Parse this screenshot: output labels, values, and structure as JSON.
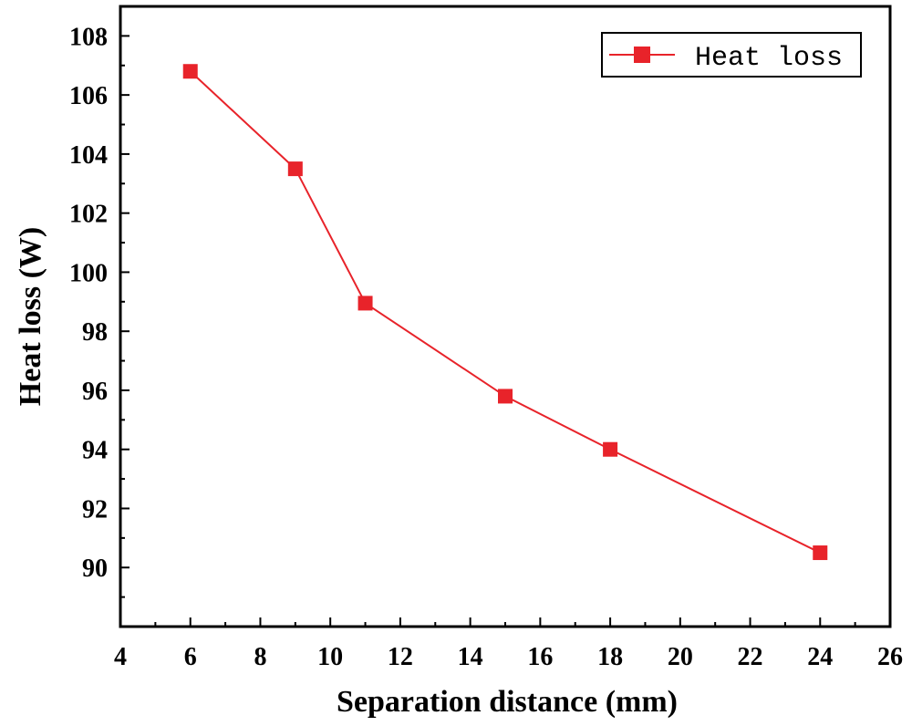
{
  "chart_data": {
    "type": "line",
    "title": "",
    "xlabel": "Separation distance (mm)",
    "ylabel": "Heat loss (W)",
    "xlim": [
      4,
      26
    ],
    "ylim": [
      88,
      109
    ],
    "xticks": [
      4,
      6,
      8,
      10,
      12,
      14,
      16,
      18,
      20,
      22,
      24,
      26
    ],
    "yticks": [
      90,
      92,
      94,
      96,
      98,
      100,
      102,
      104,
      106,
      108
    ],
    "grid": false,
    "legend_position": "top-right",
    "series": [
      {
        "name": "Heat loss",
        "color": "#e8232a",
        "marker": "square",
        "x": [
          6,
          9,
          11,
          15,
          18,
          24
        ],
        "y": [
          106.8,
          103.5,
          98.95,
          95.8,
          94.0,
          90.5
        ]
      }
    ]
  }
}
